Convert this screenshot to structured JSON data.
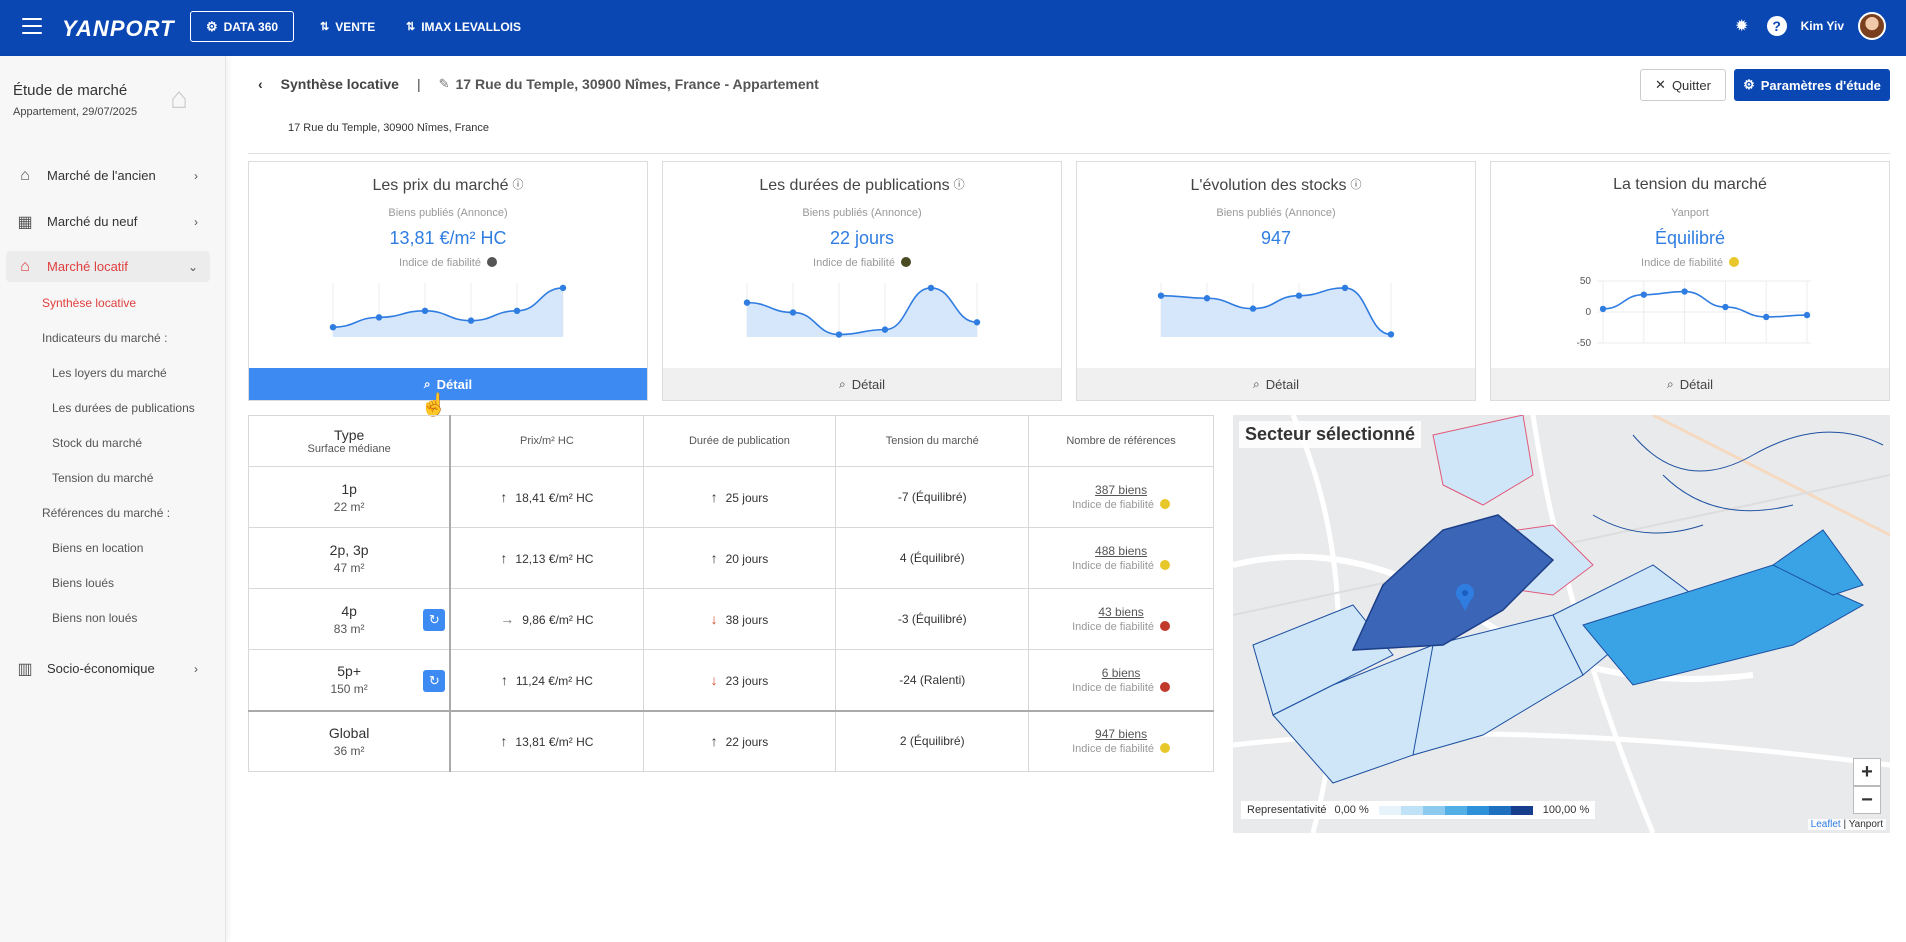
{
  "topbar": {
    "logo": "YANPORT",
    "data360": "DATA 360",
    "vente": "VENTE",
    "imax": "IMAX LEVALLOIS",
    "help": "?",
    "user": "Kim Yiv"
  },
  "sidebar": {
    "title": "Étude de marché",
    "subtitle": "Appartement, 29/07/2025",
    "items": [
      {
        "label": "Marché de l'ancien",
        "icon": "house-hand-icon"
      },
      {
        "label": "Marché du neuf",
        "icon": "building-icon"
      },
      {
        "label": "Marché locatif",
        "icon": "house-person-icon"
      },
      {
        "label": "Socio-économique",
        "icon": "chart-icon"
      }
    ],
    "sub": {
      "synthese": "Synthèse locative",
      "indicateurs": "Indicateurs du marché :",
      "loyers": "Les loyers du marché",
      "durees": "Les durées de publications",
      "stock": "Stock du marché",
      "tension": "Tension du marché",
      "references": "Références du marché :",
      "location": "Biens en location",
      "loues": "Biens loués",
      "non_loues": "Biens non loués"
    }
  },
  "header": {
    "title": "Synthèse locative",
    "sep": "|",
    "address": "17 Rue du Temple, 30900 Nîmes, France - Appartement",
    "address_line": "17 Rue du Temple, 30900 Nîmes, France",
    "quit": "Quitter",
    "params": "Paramètres d'étude"
  },
  "cards": [
    {
      "title": "Les prix du marché",
      "info": "ⓘ",
      "sub": "Biens publiés (Annonce)",
      "value": "13,81 €/m² HC",
      "rel": "Indice de fiabilité",
      "btn": "Détail",
      "dot": "#555555"
    },
    {
      "title": "Les durées de publications",
      "info": "ⓘ",
      "sub": "Biens publiés (Annonce)",
      "value": "22 jours",
      "rel": "Indice de fiabilité",
      "btn": "Détail",
      "dot": "#4a4a22"
    },
    {
      "title": "L'évolution des stocks",
      "info": "ⓘ",
      "sub": "Biens publiés (Annonce)",
      "value": "947",
      "rel": "",
      "btn": "Détail",
      "dot": ""
    },
    {
      "title": "La tension du marché",
      "info": "",
      "sub": "Yanport",
      "value": "Équilibré",
      "rel": "Indice de fiabilité",
      "btn": "Détail",
      "dot": "#e8c72a"
    }
  ],
  "chart_data": [
    {
      "type": "area",
      "y": [
        3,
        6,
        8,
        5,
        8,
        15
      ]
    },
    {
      "type": "area",
      "y": [
        14,
        10,
        1,
        3,
        20,
        6
      ]
    },
    {
      "type": "area",
      "y": [
        16,
        15,
        11,
        16,
        19,
        1
      ]
    },
    {
      "type": "line",
      "y": [
        5,
        28,
        33,
        8,
        -8,
        -5
      ],
      "yticks": [
        "50",
        "0",
        "-50"
      ],
      "ylim": [
        -50,
        50
      ]
    }
  ],
  "table": {
    "headers": {
      "type": "Type",
      "surface": "Surface médiane",
      "prix": "Prix/m² HC",
      "duree": "Durée de publication",
      "tension": "Tension du marché",
      "refs": "Nombre de références"
    },
    "rows": [
      {
        "type": "1p",
        "surface": "22 m²",
        "prix": "18,41 €/m² HC",
        "prix_dir": "up",
        "duree": "25 jours",
        "duree_dir": "up",
        "tension": "-7 (Équilibré)",
        "refs": "387 biens",
        "rel": "Indice de fiabilité",
        "dot": "#e8c72a",
        "refresh": false
      },
      {
        "type": "2p, 3p",
        "surface": "47 m²",
        "prix": "12,13 €/m² HC",
        "prix_dir": "up",
        "duree": "20 jours",
        "duree_dir": "up",
        "tension": "4 (Équilibré)",
        "refs": "488 biens",
        "rel": "Indice de fiabilité",
        "dot": "#e8c72a",
        "refresh": false
      },
      {
        "type": "4p",
        "surface": "83 m²",
        "prix": "9,86 €/m² HC",
        "prix_dir": "flat",
        "duree": "38 jours",
        "duree_dir": "down",
        "tension": "-3 (Équilibré)",
        "refs": "43 biens",
        "rel": "Indice de fiabilité",
        "dot": "#c0392b",
        "refresh": true
      },
      {
        "type": "5p+",
        "surface": "150 m²",
        "prix": "11,24 €/m² HC",
        "prix_dir": "up",
        "duree": "23 jours",
        "duree_dir": "down",
        "tension": "-24 (Ralenti)",
        "refs": "6 biens",
        "rel": "Indice de fiabilité",
        "dot": "#c0392b",
        "refresh": true
      }
    ],
    "global": {
      "type": "Global",
      "surface": "36 m²",
      "prix": "13,81 €/m² HC",
      "prix_dir": "up",
      "duree": "22 jours",
      "duree_dir": "up",
      "tension": "2 (Équilibré)",
      "refs": "947 biens",
      "rel": "Indice de fiabilité",
      "dot": "#e8c72a"
    }
  },
  "map": {
    "title": "Secteur sélectionné",
    "zoom_in": "+",
    "zoom_out": "−",
    "legend_label": "Representativité",
    "legend_min": "0,00 %",
    "legend_max": "100,00 %",
    "attrib_leaflet": "Leaflet",
    "attrib_sep": "|",
    "attrib_yanport": "Yanport"
  }
}
